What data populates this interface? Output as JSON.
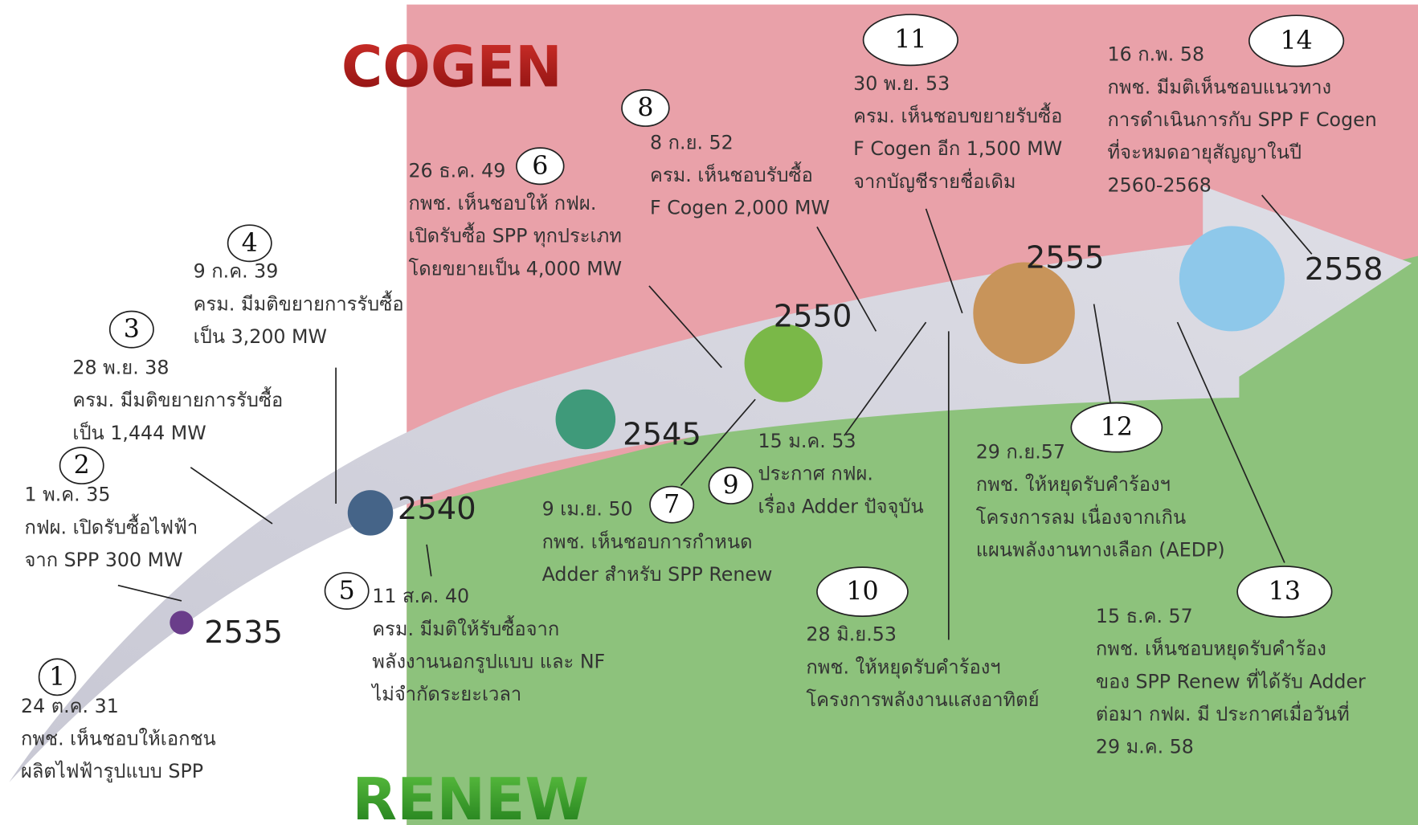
{
  "header": {
    "cogen": "COGEN",
    "renew": "RENEW"
  },
  "years": [
    "2535",
    "2540",
    "2545",
    "2550",
    "2555",
    "2558"
  ],
  "events": [
    {
      "number": "1",
      "date": "24 ต.ค. 31",
      "lines": [
        "กพช. เห็นชอบให้เอกชน",
        "ผลิตไฟฟ้ารูปแบบ SPP"
      ]
    },
    {
      "number": "2",
      "date": "1 พ.ค. 35",
      "lines": [
        "กฟผ. เปิดรับซื้อไฟฟ้า",
        "จาก SPP 300 MW"
      ]
    },
    {
      "number": "3",
      "date": "28 พ.ย. 38",
      "lines": [
        "ครม. มีมติขยายการรับซื้อ",
        "เป็น 1,444 MW"
      ]
    },
    {
      "number": "4",
      "date": "9 ก.ค. 39",
      "lines": [
        "ครม. มีมติขยายการรับซื้อ",
        "เป็น 3,200 MW"
      ]
    },
    {
      "number": "5",
      "date": "11 ส.ค. 40",
      "lines": [
        "ครม. มีมติให้รับซื้อจาก",
        "พลังงานนอกรูปแบบ และ NF",
        "ไม่จำกัดระยะเวลา"
      ]
    },
    {
      "number": "6",
      "date": "26 ธ.ค. 49",
      "lines": [
        "กพช. เห็นชอบให้ กฟผ.",
        "เปิดรับซื้อ SPP ทุกประเภท",
        "โดยขยายเป็น 4,000 MW"
      ]
    },
    {
      "number": "7",
      "date": "9 เม.ย. 50",
      "lines": [
        "กพช. เห็นชอบการกำหนด",
        "Adder สำหรับ SPP Renew"
      ]
    },
    {
      "number": "8",
      "date": "8 ก.ย. 52",
      "lines": [
        "ครม. เห็นชอบรับซื้อ",
        "F Cogen 2,000 MW"
      ]
    },
    {
      "number": "9",
      "date": "15 ม.ค. 53",
      "lines": [
        "ประกาศ กฟผ.",
        "เรื่อง Adder ปัจจุบัน"
      ]
    },
    {
      "number": "10",
      "date": "28 มิ.ย.53",
      "lines": [
        "กพช. ให้หยุดรับคำร้องฯ",
        "โครงการพลังงานแสงอาทิตย์"
      ]
    },
    {
      "number": "11",
      "date": "30 พ.ย. 53",
      "lines": [
        "ครม. เห็นชอบขยายรับซื้อ",
        "F Cogen อีก 1,500 MW",
        "จากบัญชีรายชื่อเดิม"
      ]
    },
    {
      "number": "12",
      "date": "29 ก.ย.57",
      "lines": [
        "กพช. ให้หยุดรับคำร้องฯ",
        "โครงการลม เนื่องจากเกิน",
        "แผนพลังงานทางเลือก (AEDP)"
      ]
    },
    {
      "number": "13",
      "date": "15 ธ.ค. 57",
      "lines": [
        "กพช. เห็นชอบหยุดรับคำร้อง",
        "ของ SPP Renew ที่ได้รับ Adder",
        "ต่อมา กฟผ. มี ประกาศเมื่อวันที่",
        "29 ม.ค. 58"
      ]
    },
    {
      "number": "14",
      "date": "16 ก.พ. 58",
      "lines": [
        "กพช. มีมติเห็นชอบแนวทาง",
        "การดำเนินการกับ SPP F Cogen",
        "ที่จะหมดอายุสัญญาในปี",
        "2560-2568"
      ]
    }
  ]
}
